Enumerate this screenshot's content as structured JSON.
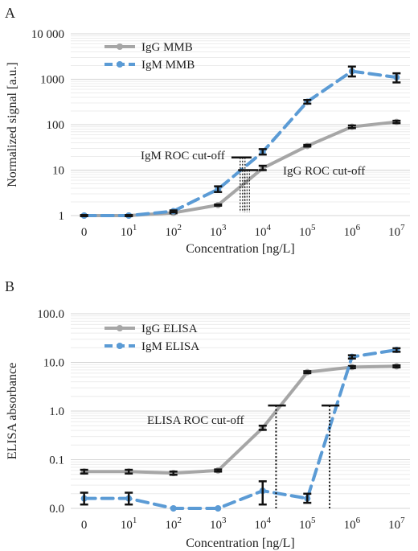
{
  "chart_data": [
    {
      "panel_label": "A",
      "type": "line",
      "yscale": "log",
      "ylabel": "Normalized signal [a.u.]",
      "xlabel": "Concentration [ng/L]",
      "x_positions": [
        0,
        1,
        2,
        3,
        4,
        5,
        6,
        7
      ],
      "x_tick_labels": [
        {
          "base": "0",
          "exp": ""
        },
        {
          "base": "10",
          "exp": "1"
        },
        {
          "base": "10",
          "exp": "2"
        },
        {
          "base": "10",
          "exp": "3"
        },
        {
          "base": "10",
          "exp": "4"
        },
        {
          "base": "10",
          "exp": "5"
        },
        {
          "base": "10",
          "exp": "6"
        },
        {
          "base": "10",
          "exp": "7"
        }
      ],
      "y_ticks": [
        1,
        10,
        100,
        1000,
        10000
      ],
      "y_tick_labels": [
        "1",
        "10",
        "100",
        "1000",
        "10 000"
      ],
      "ylim": [
        1,
        10000
      ],
      "xlim": [
        -0.3,
        7.3
      ],
      "legend_position": "top-left",
      "series": [
        {
          "name": "IgG MMB",
          "color": "#a6a6a6",
          "dash": "solid",
          "x": [
            0,
            1,
            2,
            3,
            4,
            5,
            6,
            7
          ],
          "y": [
            1.0,
            1.0,
            1.15,
            1.7,
            11,
            34,
            90,
            115
          ],
          "err": [
            [
              0.98,
              1.02
            ],
            [
              0.98,
              1.02
            ],
            [
              1.12,
              1.2
            ],
            [
              1.65,
              1.75
            ],
            [
              10,
              12.5
            ],
            [
              33,
              36
            ],
            [
              84,
              96
            ],
            [
              108,
              122
            ]
          ]
        },
        {
          "name": "IgM MMB",
          "color": "#5b9bd5",
          "dash": "dashed",
          "x": [
            0,
            1,
            2,
            3,
            4,
            5,
            6,
            7
          ],
          "y": [
            1.0,
            1.0,
            1.25,
            3.8,
            25,
            320,
            1500,
            1100
          ],
          "err": [
            [
              0.97,
              1.03
            ],
            [
              0.97,
              1.03
            ],
            [
              1.18,
              1.3
            ],
            [
              3.3,
              4.4
            ],
            [
              22,
              29
            ],
            [
              290,
              350
            ],
            [
              1150,
              1900
            ],
            [
              850,
              1350
            ]
          ]
        }
      ],
      "annotations": [
        {
          "label": "IgM ROC cut-off",
          "cutoff_y": 19,
          "cutoff_x": 3.55,
          "x_range": [
            3.3,
            3.75
          ]
        },
        {
          "label": "IgG ROC cut-off",
          "cutoff_y": 10,
          "cutoff_x": 3.65,
          "x_range": [
            3.45,
            3.9
          ]
        }
      ]
    },
    {
      "panel_label": "B",
      "type": "line",
      "yscale": "log",
      "ylabel": "ELISA absorbance",
      "xlabel": "Concentration [ng/L]",
      "x_positions": [
        0,
        1,
        2,
        3,
        4,
        5,
        6,
        7
      ],
      "x_tick_labels": [
        {
          "base": "0",
          "exp": ""
        },
        {
          "base": "10",
          "exp": "1"
        },
        {
          "base": "10",
          "exp": "2"
        },
        {
          "base": "10",
          "exp": "3"
        },
        {
          "base": "10",
          "exp": "4"
        },
        {
          "base": "10",
          "exp": "5"
        },
        {
          "base": "10",
          "exp": "6"
        },
        {
          "base": "10",
          "exp": "7"
        }
      ],
      "y_ticks": [
        0.01,
        0.1,
        1,
        10,
        100
      ],
      "y_tick_labels": [
        "0.0",
        "0.1",
        "1.0",
        "10.0",
        "100.0"
      ],
      "ylim": [
        0.01,
        100
      ],
      "xlim": [
        -0.3,
        7.3
      ],
      "legend_position": "top-left",
      "series": [
        {
          "name": "IgG ELISA",
          "color": "#a6a6a6",
          "dash": "solid",
          "x": [
            0,
            1,
            2,
            3,
            4,
            5,
            6,
            7
          ],
          "y": [
            0.057,
            0.057,
            0.053,
            0.06,
            0.45,
            6.3,
            8,
            8.3
          ],
          "err": [
            [
              0.052,
              0.062
            ],
            [
              0.052,
              0.062
            ],
            [
              0.049,
              0.057
            ],
            [
              0.057,
              0.063
            ],
            [
              0.41,
              0.5
            ],
            [
              6.0,
              6.6
            ],
            [
              7.6,
              8.4
            ],
            [
              7.9,
              8.7
            ]
          ]
        },
        {
          "name": "IgM ELISA",
          "color": "#5b9bd5",
          "dash": "dashed",
          "x": [
            0,
            1,
            2,
            3,
            4,
            5,
            6,
            7
          ],
          "y": [
            0.016,
            0.016,
            0.01,
            0.01,
            0.023,
            0.016,
            13,
            18
          ],
          "err": [
            [
              0.012,
              0.021
            ],
            [
              0.012,
              0.021
            ],
            [
              0.01,
              0.01
            ],
            [
              0.01,
              0.01
            ],
            [
              0.012,
              0.036
            ],
            [
              0.013,
              0.02
            ],
            [
              12,
              14
            ],
            [
              16.5,
              19.5
            ]
          ]
        }
      ],
      "annotations": [
        {
          "label": "ELISA ROC cut-off",
          "cutoff_y": 1.3,
          "cutoff_x": 4.3,
          "x_range": [
            4.12,
            4.52
          ]
        },
        {
          "label": "",
          "cutoff_y": 1.3,
          "cutoff_x": 5.5,
          "x_range": [
            5.32,
            5.72
          ]
        }
      ]
    }
  ]
}
